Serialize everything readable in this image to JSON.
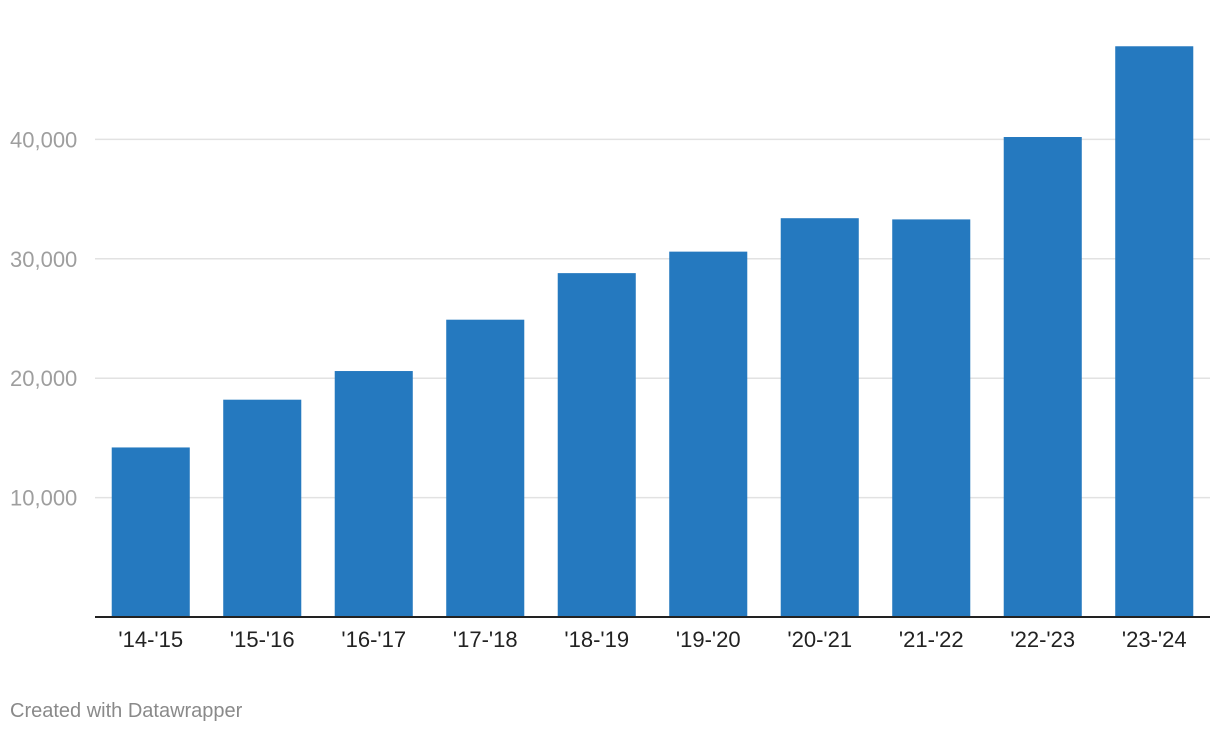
{
  "chart_data": {
    "type": "bar",
    "categories": [
      "'14-'15",
      "'15-'16",
      "'16-'17",
      "'17-'18",
      "'18-'19",
      "'19-'20",
      "'20-'21",
      "'21-'22",
      "'22-'23",
      "'23-'24"
    ],
    "values": [
      14200,
      18200,
      20600,
      24900,
      28800,
      30600,
      33400,
      33300,
      40200,
      47800
    ],
    "ylim": [
      0,
      50000
    ],
    "yticks": [
      10000,
      20000,
      30000,
      40000
    ],
    "ytick_labels": [
      "10,000",
      "20,000",
      "30,000",
      "40,000"
    ],
    "grid": true,
    "colors": {
      "bar": "#2579bf",
      "grid": "#e2e2e2",
      "axis": "#222222",
      "tick_label_y": "#9e9e9e",
      "tick_label_x": "#222222"
    }
  },
  "footer": {
    "credit": "Created with Datawrapper"
  }
}
